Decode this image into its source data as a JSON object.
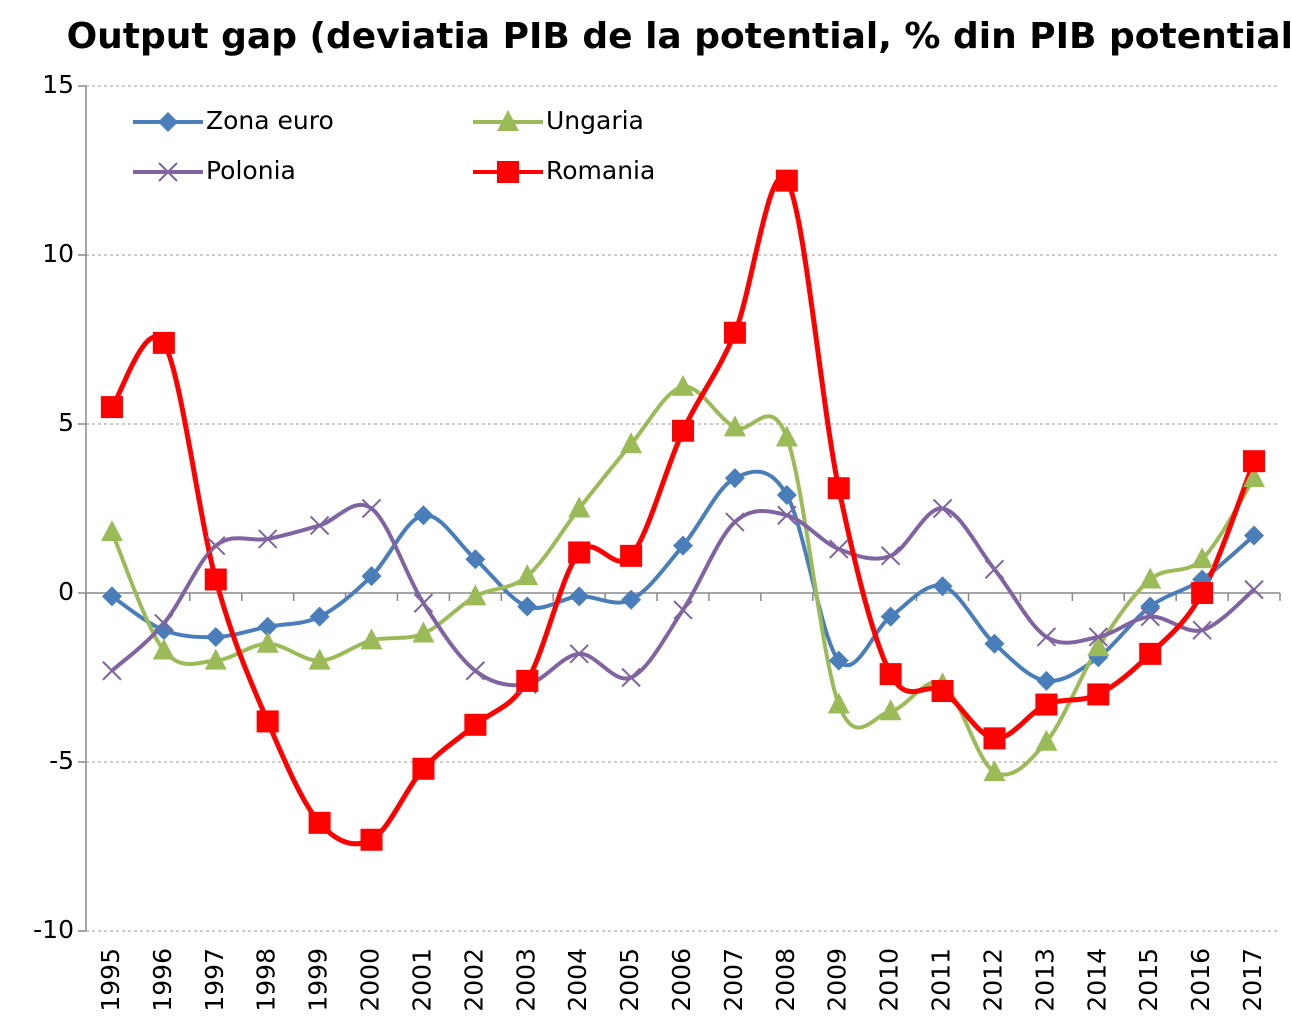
{
  "chart_data": {
    "type": "line",
    "title": "Output gap (deviatia PIB de la potential, % din PIB potential)",
    "categories": [
      "1995",
      "1996",
      "1997",
      "1998",
      "1999",
      "2000",
      "2001",
      "2002",
      "2003",
      "2004",
      "2005",
      "2006",
      "2007",
      "2008",
      "2009",
      "2010",
      "2011",
      "2012",
      "2013",
      "2014",
      "2015",
      "2016",
      "2017"
    ],
    "series": [
      {
        "name": "Zona euro",
        "color": "#4a7ebb",
        "marker": "diamond",
        "values": [
          -0.1,
          -1.1,
          -1.3,
          -1.0,
          -0.7,
          0.5,
          2.3,
          1.0,
          -0.4,
          -0.1,
          -0.2,
          1.4,
          3.4,
          2.9,
          -2.0,
          -0.7,
          0.2,
          -1.5,
          -2.6,
          -1.9,
          -0.4,
          0.4,
          1.7
        ]
      },
      {
        "name": "Ungaria",
        "color": "#9bbb59",
        "marker": "triangle",
        "values": [
          1.8,
          -1.7,
          -2.0,
          -1.5,
          -2.0,
          -1.4,
          -1.2,
          -0.1,
          0.5,
          2.5,
          4.4,
          6.1,
          4.9,
          4.6,
          -3.3,
          -3.5,
          -2.7,
          -5.3,
          -4.4,
          -1.6,
          0.4,
          1.0,
          3.4
        ]
      },
      {
        "name": "Polonia",
        "color": "#8064a2",
        "marker": "x",
        "values": [
          -2.3,
          -0.9,
          1.4,
          1.6,
          2.0,
          2.5,
          -0.3,
          -2.3,
          -2.7,
          -1.8,
          -2.5,
          -0.5,
          2.1,
          2.3,
          1.3,
          1.1,
          2.5,
          0.7,
          -1.3,
          -1.3,
          -0.7,
          -1.1,
          0.1
        ]
      },
      {
        "name": "Romania",
        "color": "#ff0000",
        "marker": "square",
        "values": [
          5.5,
          7.4,
          0.4,
          -3.8,
          -6.8,
          -7.3,
          -5.2,
          -3.9,
          -2.6,
          1.2,
          1.1,
          4.8,
          7.7,
          12.2,
          3.1,
          -2.4,
          -2.9,
          -4.3,
          -3.3,
          -3.0,
          -1.8,
          0.0,
          3.9
        ]
      }
    ],
    "ylim": [
      -10,
      15
    ],
    "yticks": [
      -10,
      -5,
      0,
      5,
      10,
      15
    ],
    "grid": true,
    "smooth": true,
    "legend": "upper-left"
  }
}
